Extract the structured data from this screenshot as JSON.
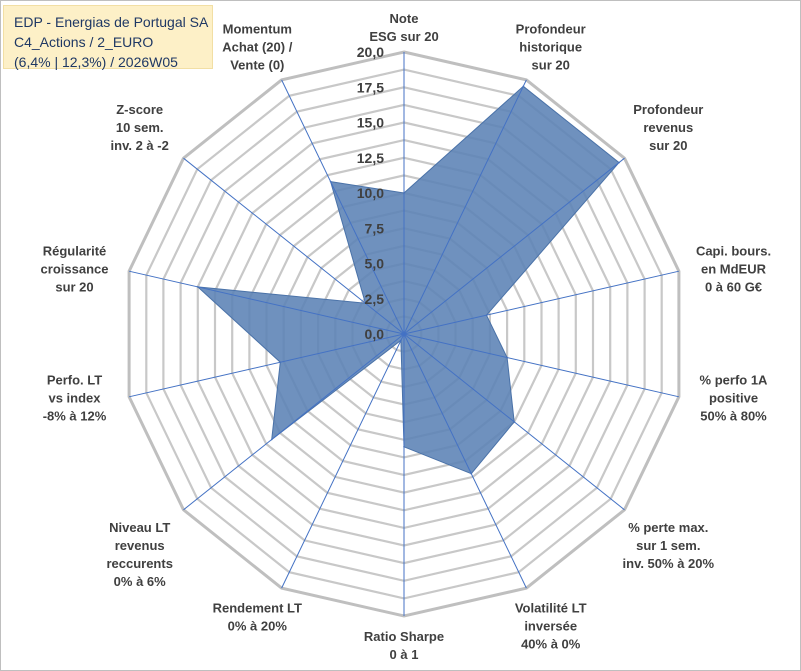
{
  "title_box": {
    "line1": "EDP - Energias de Portugal SA",
    "line2": "C4_Actions / 2_EURO",
    "line3": "(6,4% | 12,3%) / 2026W05",
    "background": "#fdf0c7",
    "text_color": "#1f3864"
  },
  "chart_data": {
    "type": "radar",
    "rmin": 0,
    "rmax": 20,
    "gridlines": [
      0,
      1.25,
      2.5,
      3.75,
      5,
      6.25,
      7.5,
      8.75,
      10,
      11.25,
      12.5,
      13.75,
      15,
      16.25,
      17.5,
      18.75,
      20
    ],
    "tick_values": [
      0,
      2.5,
      5,
      7.5,
      10,
      12.5,
      15,
      17.5,
      20
    ],
    "tick_labels": [
      "0,0",
      "2,5",
      "5,0",
      "7,5",
      "10,0",
      "12,5",
      "15,0",
      "17,5",
      "20,0"
    ],
    "categories": [
      [
        "Note",
        "ESG sur 20"
      ],
      [
        "Profondeur",
        "historique",
        "sur 20"
      ],
      [
        "Profondeur",
        "revenus",
        "sur 20"
      ],
      [
        "Capi. bours.",
        "en MdEUR",
        "0 à 60 G€"
      ],
      [
        "% perfo 1A",
        "positive",
        "50% à 80%"
      ],
      [
        "% perte max.",
        "sur 1 sem.",
        "inv. 50% à 20%"
      ],
      [
        "Volatilité LT",
        "inversée",
        "40% à 0%"
      ],
      [
        "Ratio Sharpe",
        "0 à 1"
      ],
      [
        "Rendement LT",
        "0% à 20%"
      ],
      [
        "Niveau LT",
        "revenus",
        "reccurents",
        "0% à 6%"
      ],
      [
        "Perfo. LT",
        "vs index",
        "-8% à 12%"
      ],
      [
        "Régularité",
        "croissance",
        "sur 20"
      ],
      [
        "Z-score",
        "10 sem.",
        "inv. 2 à -2"
      ],
      [
        "Momentum",
        "Achat (20) /",
        "Vente (0)"
      ]
    ],
    "series": [
      {
        "name": "EDP - Energias de Portugal SA",
        "values": [
          10.0,
          19.5,
          19.5,
          6.0,
          7.5,
          10.0,
          11.0,
          8.0,
          0.5,
          12.0,
          9.0,
          15.0,
          3.5,
          12.0
        ],
        "fill": "#5b82b5",
        "stroke": "#4a72a8"
      }
    ],
    "colors": {
      "grid": "#c8c8c8",
      "outer_grid": "#bfbfbf",
      "spoke": "#4472c4"
    }
  }
}
